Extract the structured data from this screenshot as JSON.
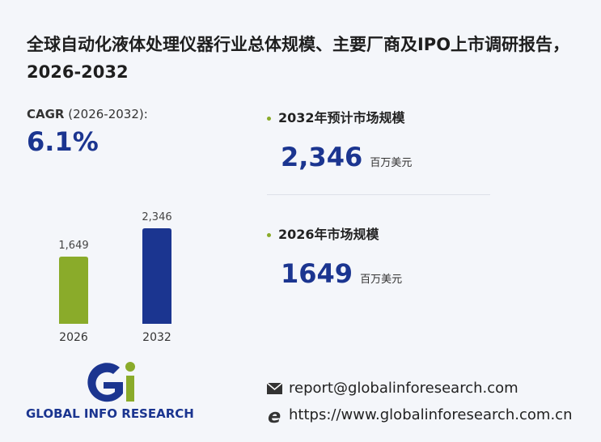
{
  "title": "全球自动化液体处理仪器行业总体规模、主要厂商及IPO上市调研报告，2026-2032",
  "cagr": {
    "label": "CAGR",
    "period": "(2026-2032):",
    "value": "6.1%"
  },
  "stats": [
    {
      "label": "2032年预计市场规模",
      "value": "2,346",
      "unit": "百万美元"
    },
    {
      "label": "2026年市场规模",
      "value": "1649",
      "unit": "百万美元"
    }
  ],
  "chart_data": {
    "type": "bar",
    "categories": [
      "2026",
      "2032"
    ],
    "values": [
      1649,
      2346
    ],
    "value_labels": [
      "1,649",
      "2,346"
    ],
    "colors": [
      "#8aab2a",
      "#1b3590"
    ]
  },
  "logo": {
    "text": "GLOBAL INFO RESEARCH"
  },
  "contact": {
    "email": "report@globalinforesearch.com",
    "website": "https://www.globalinforesearch.com.cn"
  }
}
